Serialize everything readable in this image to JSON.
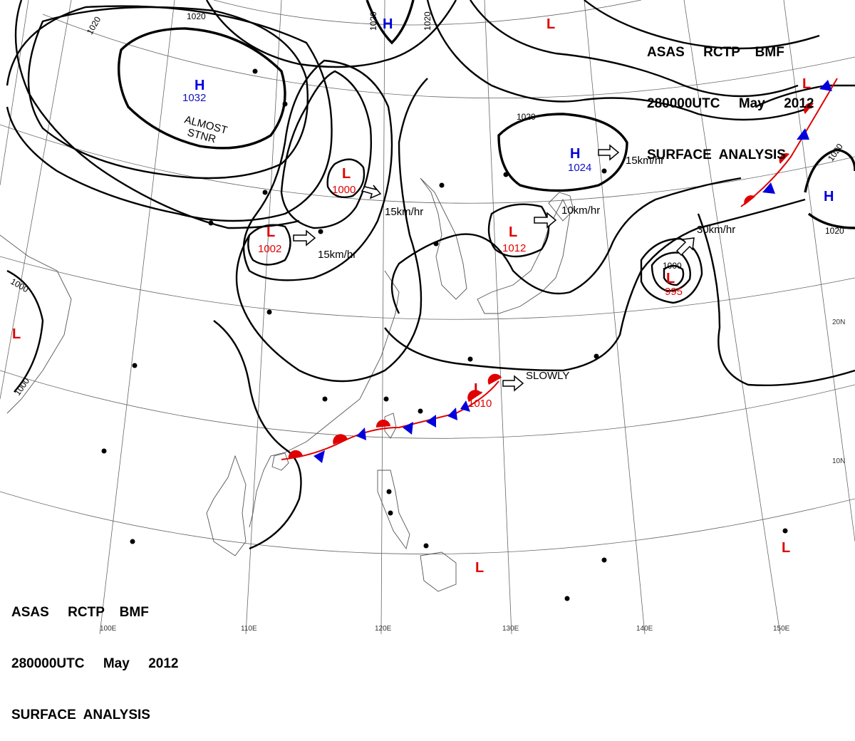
{
  "header_top": {
    "line1": "ASAS     RCTP    BMF",
    "line2": "280000UTC     May     2012",
    "line3": "SURFACE  ANALYSIS"
  },
  "header_bottom": {
    "line1": "ASAS     RCTP    BMF",
    "line2": "280000UTC     May     2012",
    "line3": "SURFACE  ANALYSIS"
  },
  "grid_labels": {
    "lon": [
      "110E",
      "120E",
      "130E",
      "140E",
      "150E"
    ],
    "lat": [
      "20N",
      "10N"
    ]
  },
  "pressure_systems": [
    {
      "id": "h-mongolia",
      "type": "H",
      "value": "1032",
      "color": "#0000dd"
    },
    {
      "id": "h-top",
      "type": "H",
      "value": "",
      "color": "#0000dd"
    },
    {
      "id": "h-japan",
      "type": "H",
      "value": "1024",
      "color": "#0000dd"
    },
    {
      "id": "h-east",
      "type": "H",
      "value": "",
      "color": "#0000dd"
    },
    {
      "id": "l-topright",
      "type": "L",
      "value": "",
      "color": "#e00000"
    },
    {
      "id": "l-nearfront",
      "type": "L",
      "value": "",
      "color": "#e00000"
    },
    {
      "id": "l-china-1000",
      "type": "L",
      "value": "1000",
      "color": "#e00000"
    },
    {
      "id": "l-china-1002",
      "type": "L",
      "value": "1002",
      "color": "#e00000"
    },
    {
      "id": "l-korea",
      "type": "L",
      "value": "1012",
      "color": "#e00000"
    },
    {
      "id": "l-typhoon",
      "type": "L",
      "value": "995",
      "color": "#e00000"
    },
    {
      "id": "l-west",
      "type": "L",
      "value": "",
      "color": "#e00000"
    },
    {
      "id": "l-taiwan",
      "type": "L",
      "value": "1010",
      "color": "#e00000"
    },
    {
      "id": "l-philippine",
      "type": "L",
      "value": "",
      "color": "#e00000"
    },
    {
      "id": "l-southeast",
      "type": "L",
      "value": "",
      "color": "#e00000"
    }
  ],
  "motion_labels": {
    "almost_stnr_1": "ALMOST",
    "almost_stnr_2": "STNR",
    "china_low": "15km/hr",
    "china_low2": "15km/hr",
    "korea_low": "10km/hr",
    "japan_high": "15km/hr",
    "typhoon": "30km/hr",
    "taiwan_low": "SLOWLY"
  },
  "isobar_labels": {
    "l1020a": "1020",
    "l1020b": "1020",
    "l1020c": "1020",
    "l1020d": "1020",
    "l1020e": "1020",
    "l1020f": "1020",
    "l1020g": "1020",
    "l1000a": "1000",
    "l1000b": "1000",
    "l1000c": "1000"
  },
  "colors": {
    "warm_front": "#e00000",
    "cold_front": "#0000dd",
    "isobar": "#000000"
  }
}
